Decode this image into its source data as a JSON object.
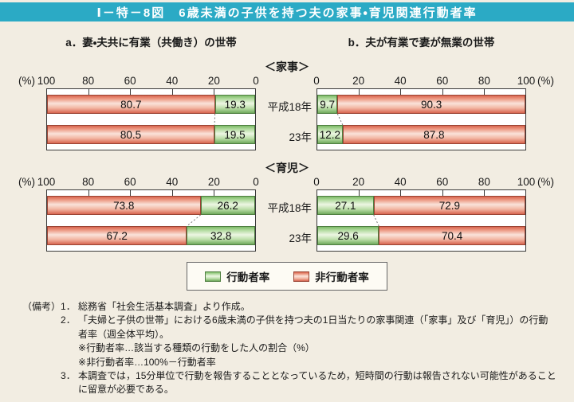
{
  "title": "Ⅰ－特－8図　6歳未満の子供を持つ夫の家事・育児関連行動者率",
  "colors": {
    "title_bg": "#2BAAC5",
    "page_bg": "#F2EDE2",
    "bar_active_green": "#8CC878",
    "bar_inactive_red": "#E8836C",
    "plot_frame": "#3A3A3A"
  },
  "chart_data": {
    "type": "bar",
    "variant": "horizontal-stacked-100pct",
    "unit": "%",
    "row_labels": [
      "平成18年",
      "23年"
    ],
    "legend": [
      "行動者率",
      "非行動者率"
    ],
    "axis_pct_label": "(%)",
    "columns": [
      {
        "key": "dual_income",
        "header": "a．妻・夫共に有業（共働き）の世帯",
        "axis_ticks": [
          100,
          80,
          60,
          40,
          20,
          0
        ],
        "reversed": true,
        "segment_order": [
          "非行動者率",
          "行動者率"
        ]
      },
      {
        "key": "single_income",
        "header": "b．夫が有業で妻が無業の世帯",
        "axis_ticks": [
          0,
          20,
          40,
          60,
          80,
          100
        ],
        "reversed": false,
        "segment_order": [
          "行動者率",
          "非行動者率"
        ]
      }
    ],
    "sections": [
      {
        "title": "＜家事＞",
        "dual_income": {
          "非行動者率": [
            80.7,
            80.5
          ],
          "行動者率": [
            19.3,
            19.5
          ]
        },
        "single_income": {
          "行動者率": [
            9.7,
            12.2
          ],
          "非行動者率": [
            90.3,
            87.8
          ]
        }
      },
      {
        "title": "＜育児＞",
        "dual_income": {
          "非行動者率": [
            73.8,
            67.2
          ],
          "行動者率": [
            26.2,
            32.8
          ]
        },
        "single_income": {
          "行動者率": [
            27.1,
            29.6
          ],
          "非行動者率": [
            72.9,
            70.4
          ]
        }
      }
    ]
  },
  "notes": {
    "label": "（備考）",
    "items": [
      {
        "num": "1．",
        "text": "総務省「社会生活基本調査」より作成。"
      },
      {
        "num": "2．",
        "text": "「夫婦と子供の世帯」における6歳未満の子供を持つ夫の1日当たりの家事関連（「家事」及び「育児」）の行動者率（週全体平均）。"
      },
      {
        "num": "",
        "text": "※行動者率…該当する種類の行動をした人の割合（%）"
      },
      {
        "num": "",
        "text": "※非行動者率…100%－行動者率"
      },
      {
        "num": "3．",
        "text": "本調査では，15分単位で行動を報告することとなっているため，短時間の行動は報告されない可能性があることに留意が必要である。"
      }
    ]
  }
}
